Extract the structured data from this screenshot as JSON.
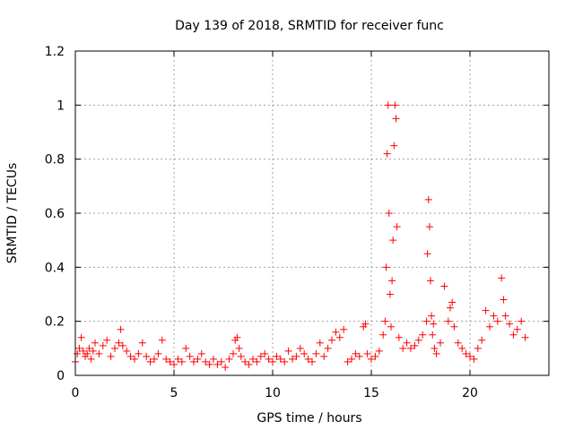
{
  "chart_data": {
    "type": "scatter",
    "title": "Day 139 of 2018, SRMTID for receiver func",
    "xlabel": "GPS time / hours",
    "ylabel": "SRMTID / TECUs",
    "xlim": [
      0,
      24
    ],
    "ylim": [
      0,
      1.2
    ],
    "x_ticks": [
      0,
      5,
      10,
      15,
      20
    ],
    "x_tick_labels": [
      "0",
      "5",
      "10",
      "15",
      "20"
    ],
    "y_ticks": [
      0,
      0.2,
      0.4,
      0.6,
      0.8,
      1.0,
      1.2
    ],
    "y_tick_labels": [
      "0",
      "0.2",
      "0.4",
      "0.6",
      "0.8",
      "1",
      "1.2"
    ],
    "grid": true,
    "marker": "+",
    "series": [
      {
        "name": "SRMTID",
        "color": "#ff0000",
        "x": [
          0.0,
          0.1,
          0.2,
          0.3,
          0.4,
          0.5,
          0.6,
          0.7,
          0.8,
          0.9,
          1.0,
          1.2,
          1.4,
          1.6,
          1.8,
          2.0,
          2.2,
          2.3,
          2.4,
          2.6,
          2.8,
          3.0,
          3.2,
          3.4,
          3.6,
          3.8,
          4.0,
          4.2,
          4.4,
          4.6,
          4.8,
          5.0,
          5.2,
          5.4,
          5.6,
          5.8,
          6.0,
          6.2,
          6.4,
          6.6,
          6.8,
          7.0,
          7.2,
          7.4,
          7.6,
          7.8,
          8.0,
          8.1,
          8.2,
          8.3,
          8.4,
          8.6,
          8.8,
          9.0,
          9.2,
          9.4,
          9.6,
          9.8,
          10.0,
          10.2,
          10.4,
          10.6,
          10.8,
          11.0,
          11.2,
          11.4,
          11.6,
          11.8,
          12.0,
          12.2,
          12.4,
          12.6,
          12.8,
          13.0,
          13.2,
          13.4,
          13.6,
          13.8,
          14.0,
          14.2,
          14.4,
          14.6,
          14.7,
          14.8,
          15.0,
          15.2,
          15.4,
          15.6,
          15.7,
          15.75,
          15.8,
          15.85,
          15.9,
          15.95,
          16.0,
          16.05,
          16.1,
          16.15,
          16.2,
          16.25,
          16.3,
          16.4,
          16.6,
          16.8,
          17.0,
          17.2,
          17.4,
          17.6,
          17.8,
          17.85,
          17.9,
          17.95,
          18.0,
          18.05,
          18.1,
          18.15,
          18.2,
          18.3,
          18.5,
          18.7,
          18.9,
          19.0,
          19.1,
          19.2,
          19.4,
          19.6,
          19.8,
          20.0,
          20.2,
          20.4,
          20.6,
          20.8,
          21.0,
          21.2,
          21.4,
          21.6,
          21.7,
          21.8,
          22.0,
          22.2,
          22.4,
          22.6,
          22.8
        ],
        "y": [
          0.05,
          0.08,
          0.1,
          0.14,
          0.09,
          0.07,
          0.08,
          0.1,
          0.06,
          0.09,
          0.12,
          0.08,
          0.11,
          0.13,
          0.07,
          0.1,
          0.12,
          0.17,
          0.11,
          0.09,
          0.07,
          0.06,
          0.08,
          0.12,
          0.07,
          0.05,
          0.06,
          0.08,
          0.13,
          0.06,
          0.05,
          0.04,
          0.06,
          0.05,
          0.1,
          0.07,
          0.05,
          0.06,
          0.08,
          0.05,
          0.04,
          0.06,
          0.04,
          0.05,
          0.03,
          0.06,
          0.08,
          0.13,
          0.14,
          0.1,
          0.07,
          0.05,
          0.04,
          0.06,
          0.05,
          0.07,
          0.08,
          0.06,
          0.05,
          0.07,
          0.06,
          0.05,
          0.09,
          0.06,
          0.07,
          0.1,
          0.08,
          0.06,
          0.05,
          0.08,
          0.12,
          0.07,
          0.1,
          0.13,
          0.16,
          0.14,
          0.17,
          0.05,
          0.06,
          0.08,
          0.07,
          0.18,
          0.19,
          0.08,
          0.06,
          0.07,
          0.09,
          0.15,
          0.2,
          0.4,
          0.82,
          1.0,
          0.6,
          0.3,
          0.18,
          0.35,
          0.5,
          0.85,
          1.0,
          0.95,
          0.55,
          0.14,
          0.1,
          0.12,
          0.1,
          0.11,
          0.13,
          0.15,
          0.2,
          0.45,
          0.65,
          0.55,
          0.35,
          0.22,
          0.15,
          0.19,
          0.1,
          0.08,
          0.12,
          0.33,
          0.2,
          0.25,
          0.27,
          0.18,
          0.12,
          0.1,
          0.08,
          0.07,
          0.06,
          0.1,
          0.13,
          0.24,
          0.18,
          0.22,
          0.2,
          0.36,
          0.28,
          0.22,
          0.19,
          0.15,
          0.17,
          0.2,
          0.14
        ]
      }
    ]
  }
}
